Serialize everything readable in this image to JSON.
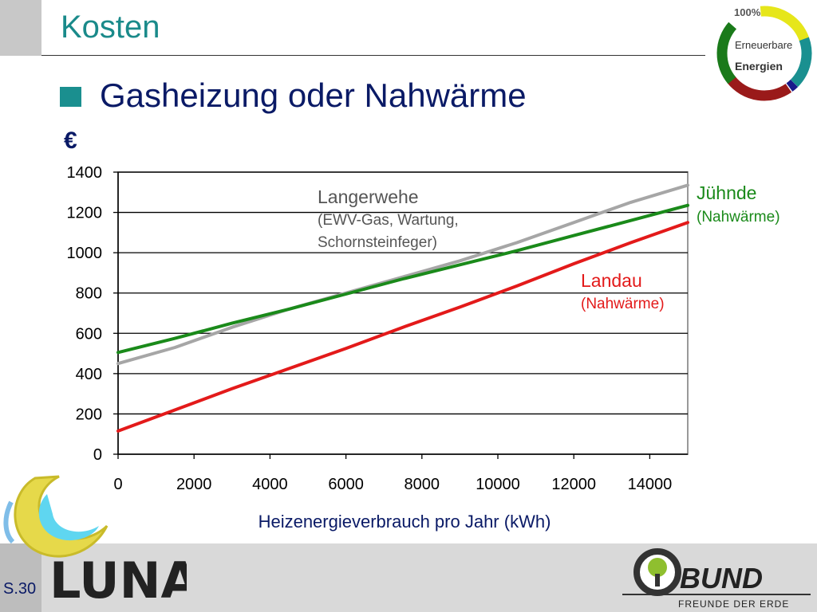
{
  "slide": {
    "title": "Kosten",
    "subtitle": "Gasheizung oder Nahwärme",
    "y_unit": "€",
    "page_number": "S.30"
  },
  "logos": {
    "badge_top": "100%",
    "badge_line1": "Erneuerbare",
    "badge_line2": "Energien",
    "luna_text": "LUNA",
    "bund_name": "BUND",
    "bund_tagline": "FREUNDE DER ERDE"
  },
  "annotations": {
    "langerwehe_title": "Langerwehe",
    "langerwehe_line1": "(EWV-Gas, Wartung,",
    "langerwehe_line2": "Schornsteinfeger)",
    "juehnde_title": "Jühnde",
    "juehnde_sub": "(Nahwärme)",
    "landau_title": "Landau",
    "landau_sub": "(Nahwärme)"
  },
  "colors": {
    "title": "#1a8a8a",
    "subtitle": "#0a1a66",
    "langerwehe": "#a6a6a6",
    "juehnde": "#1a8a1a",
    "landau": "#e31a1a"
  },
  "chart_data": {
    "type": "line",
    "xlabel": "Heizenergieverbrauch pro Jahr (kWh)",
    "ylabel": "€",
    "xlim": [
      0,
      15000
    ],
    "ylim": [
      0,
      1400
    ],
    "x_ticks": [
      0,
      2000,
      4000,
      6000,
      8000,
      10000,
      12000,
      14000
    ],
    "y_ticks": [
      0,
      200,
      400,
      600,
      800,
      1000,
      1200,
      1400
    ],
    "grid": "horizontal",
    "series": [
      {
        "name": "Langerwehe",
        "color": "#a6a6a6",
        "x": [
          0,
          1500,
          3000,
          4500,
          6000,
          7500,
          9000,
          10500,
          12000,
          13500,
          15000
        ],
        "y": [
          450,
          530,
          630,
          720,
          800,
          880,
          960,
          1050,
          1150,
          1250,
          1335
        ]
      },
      {
        "name": "Jühnde",
        "color": "#1a8a1a",
        "x": [
          0,
          1500,
          3000,
          4500,
          6000,
          7500,
          9000,
          10500,
          12000,
          13500,
          15000
        ],
        "y": [
          505,
          575,
          650,
          720,
          795,
          870,
          940,
          1010,
          1085,
          1160,
          1235
        ]
      },
      {
        "name": "Landau",
        "color": "#e31a1a",
        "x": [
          0,
          1500,
          3000,
          4500,
          6000,
          7500,
          9000,
          10500,
          12000,
          13500,
          15000
        ],
        "y": [
          115,
          220,
          325,
          425,
          525,
          630,
          730,
          835,
          945,
          1050,
          1150
        ]
      }
    ]
  }
}
